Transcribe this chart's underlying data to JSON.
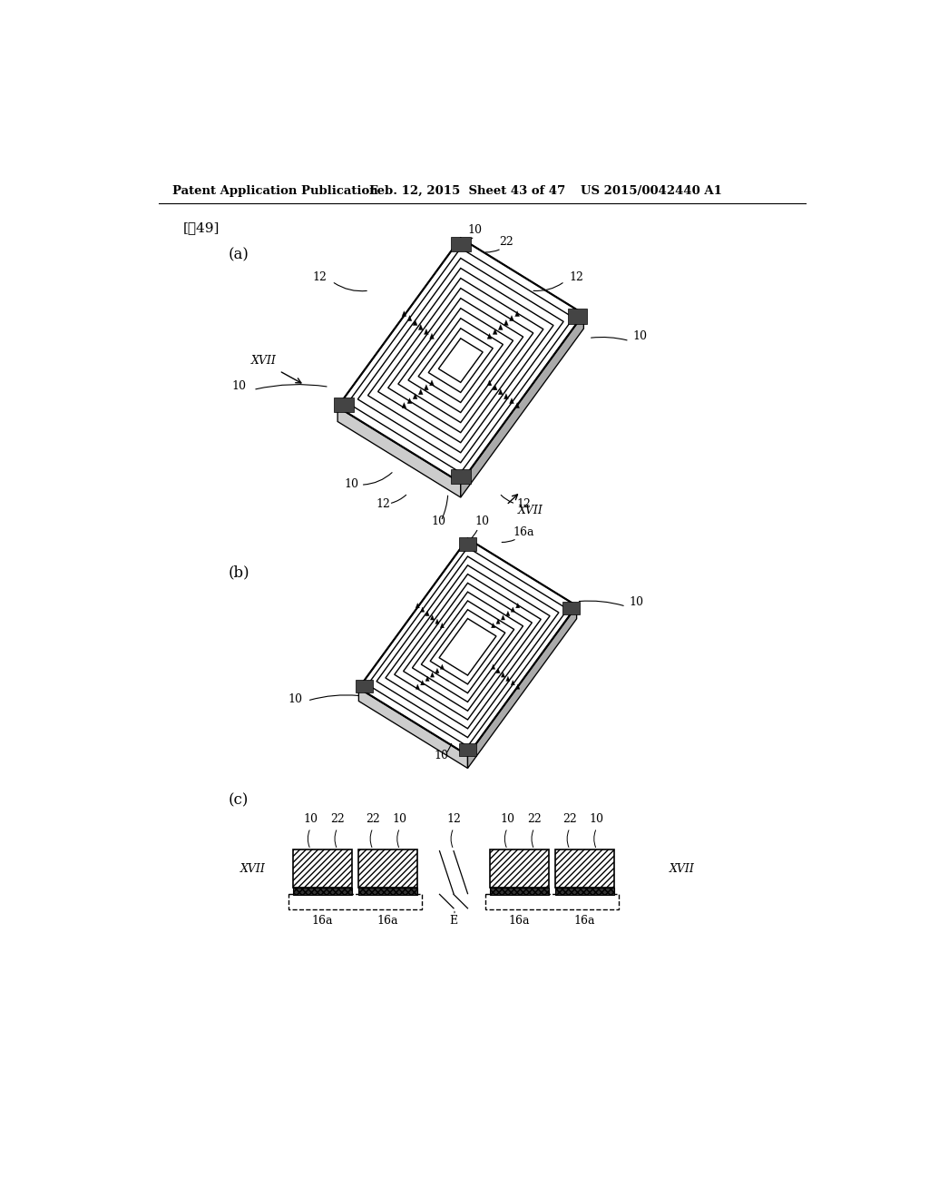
{
  "header_left": "Patent Application Publication",
  "header_mid": "Feb. 12, 2015  Sheet 43 of 47",
  "header_right": "US 2015/0042440 A1",
  "figure_label": "[囲49]",
  "bg_color": "#ffffff",
  "line_color": "#000000",
  "label_a": "(a)",
  "label_b": "(b)",
  "label_c": "(c)"
}
